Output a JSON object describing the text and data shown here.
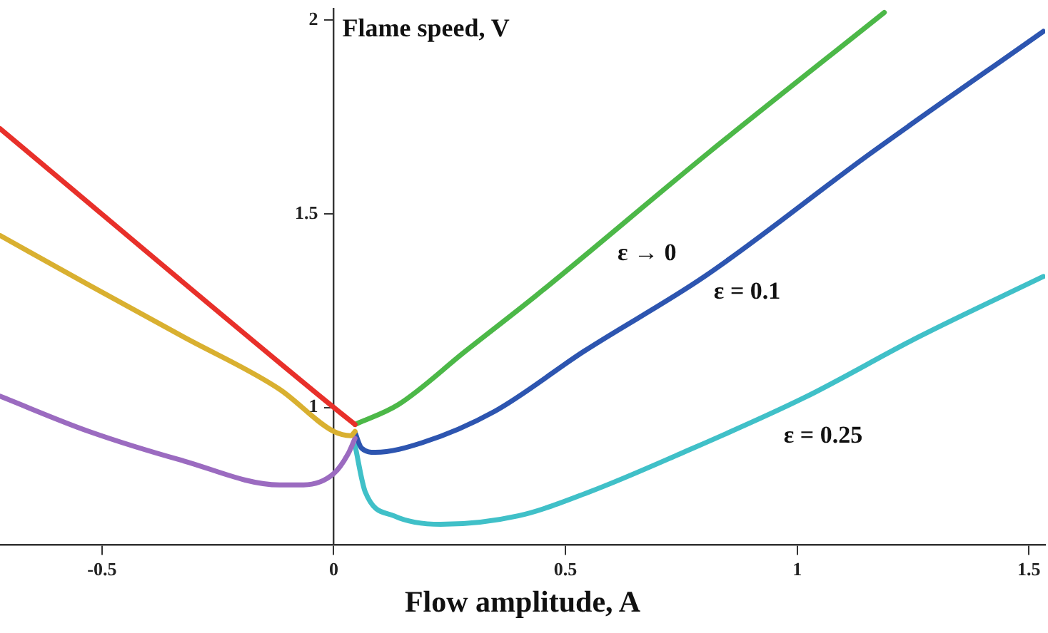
{
  "chart_data": {
    "type": "line",
    "xlabel": "Flow amplitude, A",
    "ylabel": "Flame speed, V",
    "xlim": [
      -0.72,
      1.535
    ],
    "ylim": [
      0.645,
      2.03
    ],
    "xticks": [
      -0.5,
      0,
      0.5,
      1,
      1.5
    ],
    "yticks": [
      1,
      1.5,
      2
    ],
    "marker": "none",
    "line_style": "solid",
    "legend": false,
    "series": [
      {
        "color": "#e8302a",
        "x": [
          -0.72,
          0,
          0.046
        ],
        "values": [
          1.72,
          1.0,
          0.956
        ]
      },
      {
        "color": "#d9b030",
        "x": [
          -0.72,
          -0.528,
          -0.324,
          -0.117,
          0,
          0.037,
          0.046
        ],
        "values": [
          1.444,
          1.316,
          1.182,
          1.047,
          0.938,
          0.927,
          0.938
        ]
      },
      {
        "color": "#9b6bc0",
        "x": [
          -0.72,
          -0.528,
          -0.324,
          -0.117,
          -0.065,
          0,
          0.031,
          0.046
        ],
        "values": [
          1.029,
          0.938,
          0.862,
          0.8,
          0.8,
          0.829,
          0.88,
          0.92
        ]
      },
      {
        "color": "#4cb848",
        "x": [
          0.046,
          0.139,
          0.284,
          0.438,
          0.809,
          1.188
        ],
        "values": [
          0.956,
          1.007,
          1.145,
          1.29,
          1.658,
          2.02
        ]
      },
      {
        "color": "#2d55b0",
        "x": [
          0.046,
          0.06,
          0.09,
          0.191,
          0.346,
          0.54,
          0.8,
          1.157,
          1.531
        ],
        "values": [
          0.935,
          0.895,
          0.884,
          0.909,
          0.989,
          1.145,
          1.338,
          1.655,
          1.971
        ]
      },
      {
        "color": "#40c0c8",
        "x": [
          0.046,
          0.068,
          0.13,
          0.231,
          0.398,
          0.552,
          0.747,
          1.015,
          1.262,
          1.531
        ],
        "values": [
          0.902,
          0.782,
          0.72,
          0.698,
          0.72,
          0.782,
          0.88,
          1.025,
          1.182,
          1.338
        ]
      }
    ],
    "annotations": [
      {
        "text": "ε → 0",
        "x": 0.676,
        "y": 1.522
      },
      {
        "text": "ε = 0.1",
        "x": 0.892,
        "y": 1.422
      },
      {
        "text": "ε = 0.25",
        "x": 1.056,
        "y": 1.051
      }
    ]
  }
}
